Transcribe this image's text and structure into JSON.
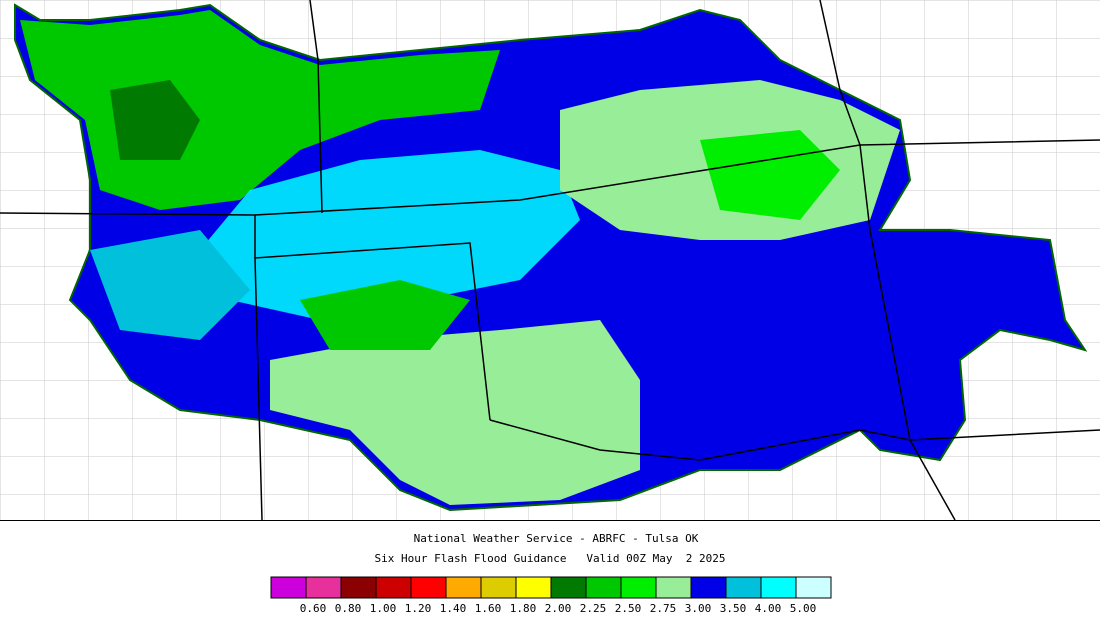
{
  "header": {
    "line1": "National Weather Service - ABRFC - Tulsa OK",
    "line2": "Six Hour Flash Flood Guidance   Valid 00Z May  2 2025"
  },
  "legend": {
    "colors": [
      "#cc00dd",
      "#e8309c",
      "#8b0000",
      "#cc0000",
      "#ff0000",
      "#ffaa00",
      "#ddcc00",
      "#ffff00",
      "#007a00",
      "#00c800",
      "#00ee00",
      "#98ee98",
      "#0000e6",
      "#00c0dc",
      "#00ffff",
      "#ccffff"
    ],
    "labels": [
      "0.60",
      "0.80",
      "1.00",
      "1.20",
      "1.40",
      "1.60",
      "1.80",
      "2.00",
      "2.25",
      "2.50",
      "2.75",
      "3.00",
      "3.50",
      "4.00",
      "5.00"
    ]
  }
}
